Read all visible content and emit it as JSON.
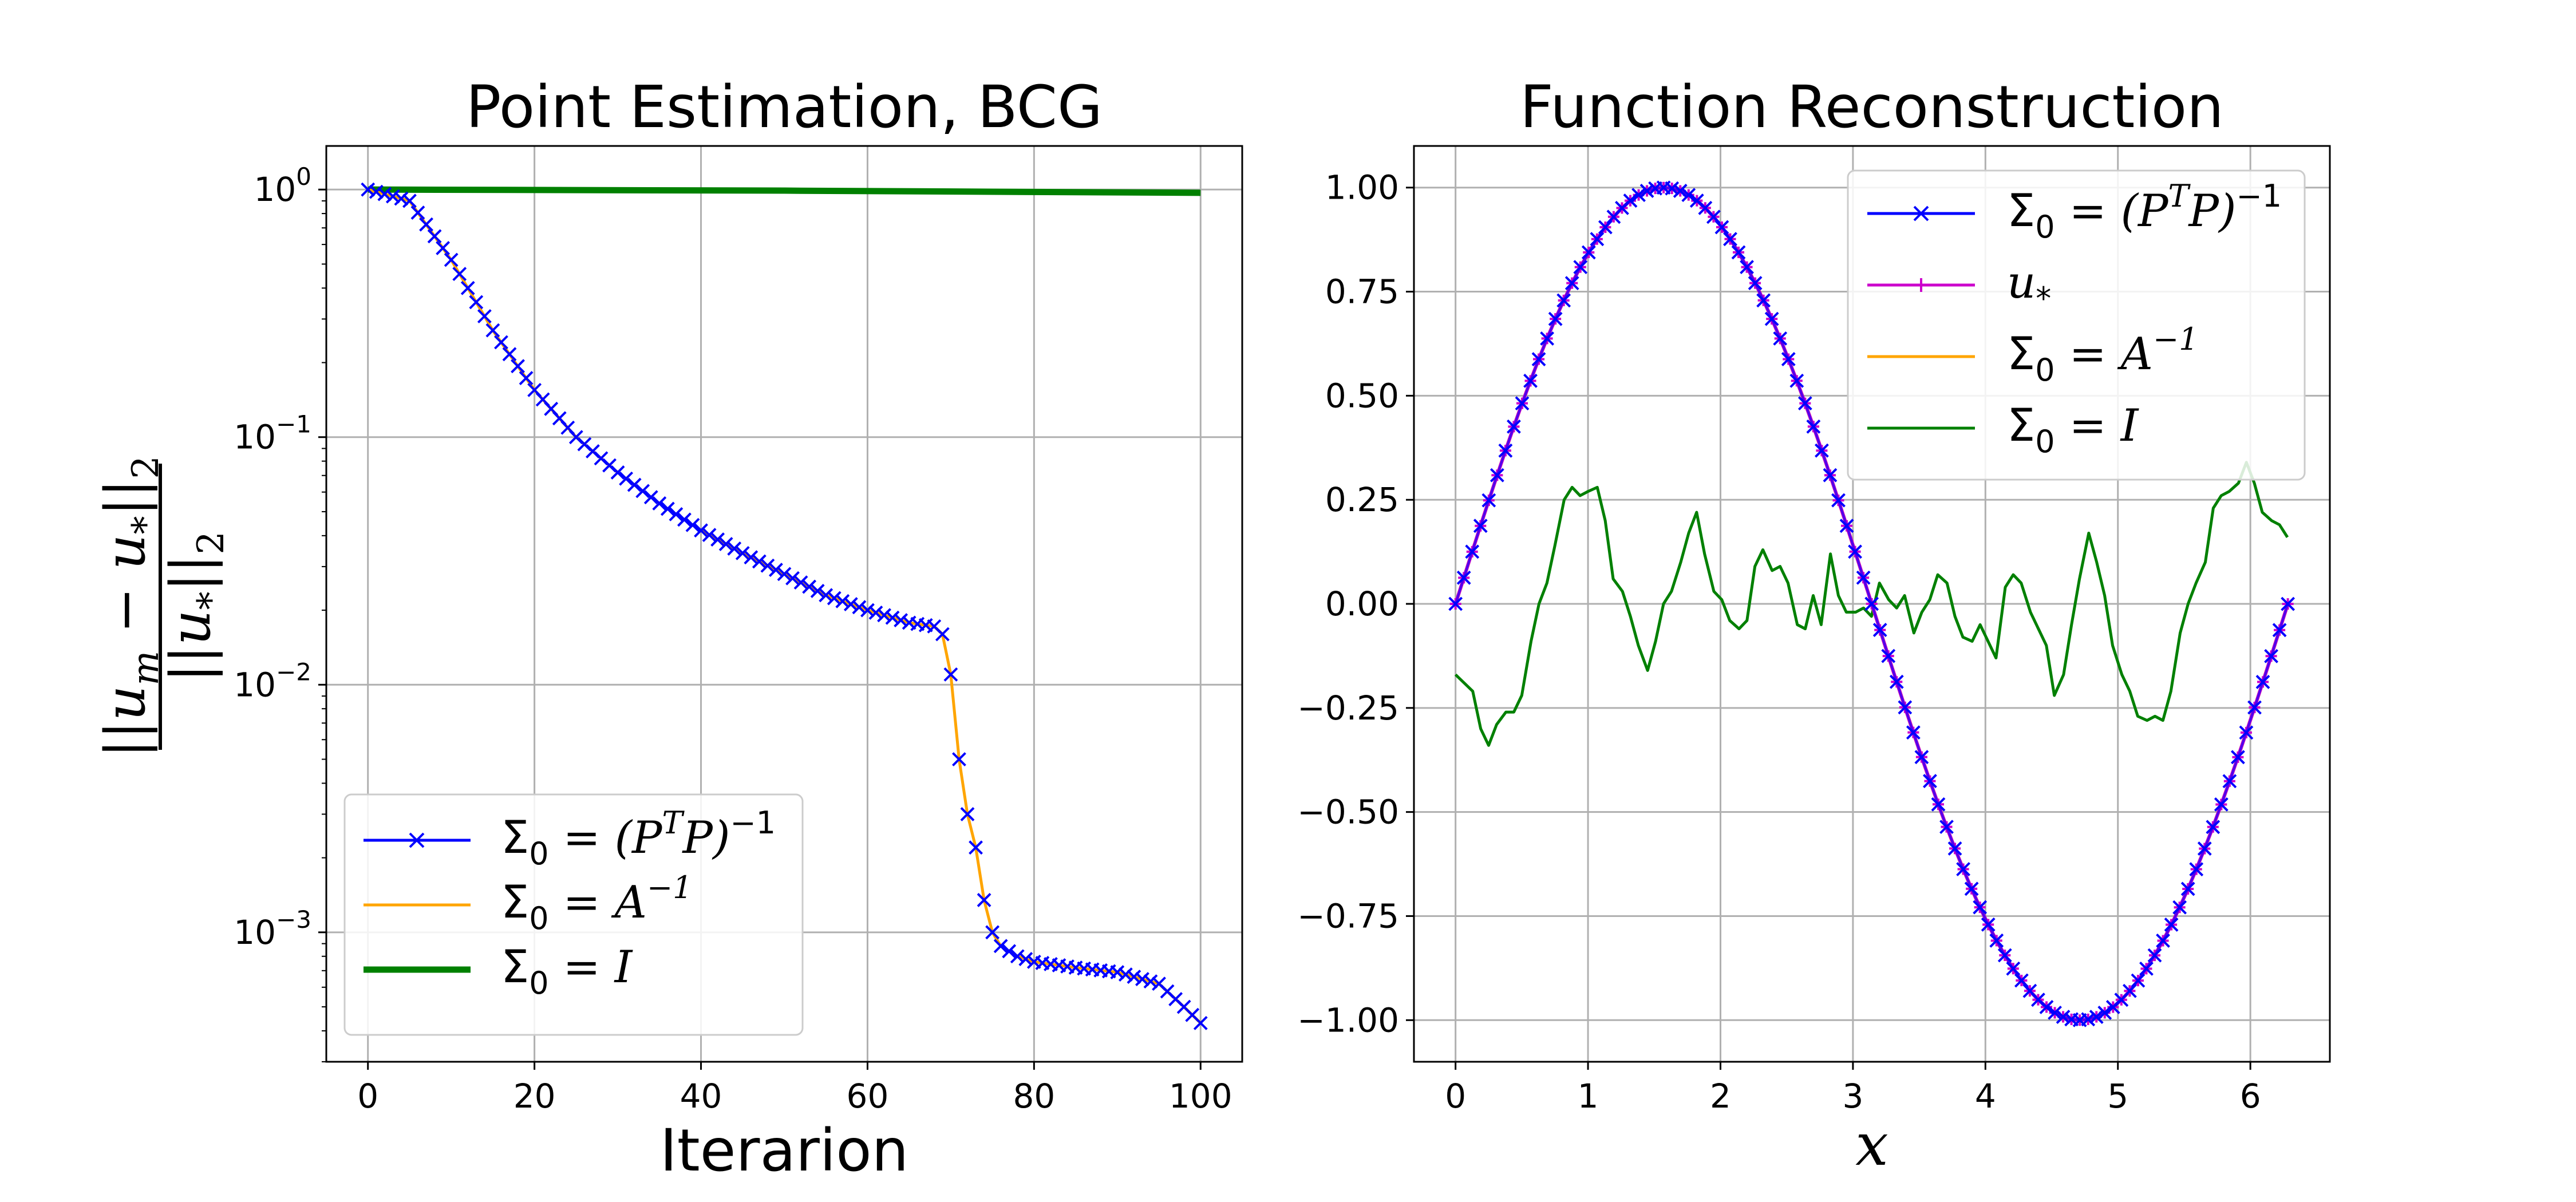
{
  "chart_data": [
    {
      "type": "line",
      "title": "Point Estimation, BCG",
      "xlabel": "Iterarion",
      "ylabel": "||u_m − u_*||_2 / ||u_*||_2",
      "yscale": "log",
      "xlim": [
        -5,
        105
      ],
      "ylim": [
        0.0003,
        1.5
      ],
      "xticks": [
        0,
        20,
        40,
        60,
        80,
        100
      ],
      "xtick_labels": [
        "0",
        "20",
        "40",
        "60",
        "80",
        "100"
      ],
      "yticks": [
        1,
        0.1,
        0.01,
        0.001
      ],
      "ytick_labels": [
        {
          "base": "10",
          "exp": "0"
        },
        {
          "base": "10",
          "exp": "−1"
        },
        {
          "base": "10",
          "exp": "−2"
        },
        {
          "base": "10",
          "exp": "−3"
        }
      ],
      "grid": true,
      "legend": "lower-left",
      "series": [
        {
          "name": "Σ0 = (PᵀP)⁻¹",
          "legend_main": "Σ",
          "legend_sub": "0",
          "legend_rest": " = (P",
          "legend_sup": "T",
          "legend_rest2": "P)",
          "legend_sup2": "−1",
          "color": "#0000ff",
          "marker": "x",
          "x": [
            0,
            5,
            10,
            15,
            20,
            25,
            30,
            35,
            40,
            45,
            50,
            55,
            60,
            65,
            68,
            69,
            70,
            71,
            72,
            73,
            74,
            75,
            76,
            78,
            80,
            85,
            90,
            95,
            98,
            100
          ],
          "y": [
            1.0,
            0.9,
            0.52,
            0.27,
            0.155,
            0.1,
            0.072,
            0.054,
            0.042,
            0.034,
            0.028,
            0.023,
            0.02,
            0.0178,
            0.0172,
            0.016,
            0.011,
            0.005,
            0.003,
            0.0022,
            0.00135,
            0.001,
            0.00088,
            0.0008,
            0.00076,
            0.00072,
            0.00069,
            0.00062,
            0.0005,
            0.00043
          ]
        },
        {
          "name": "Σ0 = A⁻¹",
          "legend_main": "Σ",
          "legend_sub": "0",
          "legend_rest": " = A",
          "legend_sup": "−1",
          "color": "#ffa500",
          "marker": "none",
          "x": [
            0,
            5,
            10,
            15,
            20,
            25,
            30,
            35,
            40,
            45,
            50,
            55,
            60,
            65,
            68,
            69,
            70,
            71,
            72,
            73,
            74,
            75,
            76,
            78,
            80,
            85,
            90,
            95,
            98,
            100
          ],
          "y": [
            1.0,
            0.9,
            0.52,
            0.27,
            0.155,
            0.1,
            0.072,
            0.054,
            0.042,
            0.034,
            0.028,
            0.023,
            0.02,
            0.0178,
            0.0172,
            0.016,
            0.011,
            0.005,
            0.003,
            0.0022,
            0.00135,
            0.001,
            0.00088,
            0.0008,
            0.00076,
            0.00072,
            0.00069,
            0.00062,
            0.0005,
            0.00043
          ]
        },
        {
          "name": "Σ0 = I",
          "legend_main": "Σ",
          "legend_sub": "0",
          "legend_rest": " = I",
          "color": "#008000",
          "marker": "none",
          "x": [
            0,
            50,
            100
          ],
          "y": [
            1.0,
            0.99,
            0.97
          ]
        }
      ]
    },
    {
      "type": "line",
      "title": "Function Reconstruction",
      "xlabel": "x",
      "ylabel": "",
      "xlim": [
        -0.314,
        6.6
      ],
      "ylim": [
        -1.1,
        1.1
      ],
      "xticks": [
        0,
        1,
        2,
        3,
        4,
        5,
        6
      ],
      "xtick_labels": [
        "0",
        "1",
        "2",
        "3",
        "4",
        "5",
        "6"
      ],
      "yticks": [
        1.0,
        0.75,
        0.5,
        0.25,
        0.0,
        -0.25,
        -0.5,
        -0.75,
        -1.0
      ],
      "ytick_labels": [
        "1.00",
        "0.75",
        "0.50",
        "0.25",
        "0.00",
        "−0.25",
        "−0.50",
        "−0.75",
        "−1.00"
      ],
      "grid": true,
      "legend": "top-right",
      "series": [
        {
          "name": "Σ0 = (PᵀP)⁻¹",
          "legend_main": "Σ",
          "legend_sub": "0",
          "legend_rest": " = (P",
          "legend_sup": "T",
          "legend_rest2": "P)",
          "legend_sup2": "−1",
          "color": "#0000ff",
          "marker": "x",
          "function": "sin",
          "x_range": [
            0,
            6.283
          ],
          "n_points": 101
        },
        {
          "name": "u*",
          "legend_main": "u",
          "legend_sub": "*",
          "color": "#cc00cc",
          "marker": "+",
          "function": "sin",
          "x_range": [
            0,
            6.283
          ],
          "n_points": 101
        },
        {
          "name": "Σ0 = A⁻¹",
          "legend_main": "Σ",
          "legend_sub": "0",
          "legend_rest": " = A",
          "legend_sup": "−1",
          "color": "#ffa500",
          "marker": "none",
          "function": "sin",
          "x_range": [
            0,
            6.283
          ],
          "n_points": 101
        },
        {
          "name": "Σ0 = I",
          "legend_main": "Σ",
          "legend_sub": "0",
          "legend_rest": " = I",
          "color": "#008000",
          "marker": "none",
          "x": [
            0.0,
            0.13,
            0.19,
            0.25,
            0.31,
            0.38,
            0.44,
            0.5,
            0.57,
            0.63,
            0.69,
            0.75,
            0.82,
            0.88,
            0.94,
            1.0,
            1.07,
            1.13,
            1.19,
            1.26,
            1.32,
            1.38,
            1.45,
            1.51,
            1.57,
            1.63,
            1.7,
            1.76,
            1.82,
            1.88,
            1.95,
            2.01,
            2.07,
            2.14,
            2.2,
            2.26,
            2.32,
            2.39,
            2.45,
            2.51,
            2.58,
            2.64,
            2.7,
            2.76,
            2.83,
            2.89,
            2.95,
            3.02,
            3.08,
            3.14,
            3.2,
            3.27,
            3.33,
            3.39,
            3.46,
            3.52,
            3.58,
            3.64,
            3.71,
            3.77,
            3.83,
            3.9,
            3.96,
            4.02,
            4.08,
            4.15,
            4.21,
            4.27,
            4.34,
            4.4,
            4.46,
            4.52,
            4.59,
            4.65,
            4.71,
            4.78,
            4.84,
            4.9,
            4.96,
            5.03,
            5.09,
            5.15,
            5.22,
            5.28,
            5.34,
            5.4,
            5.47,
            5.53,
            5.59,
            5.66,
            5.72,
            5.78,
            5.84,
            5.91,
            5.97,
            6.03,
            6.09,
            6.16,
            6.22,
            6.28
          ],
          "y": [
            -0.17,
            -0.21,
            -0.3,
            -0.34,
            -0.29,
            -0.26,
            -0.26,
            -0.22,
            -0.09,
            0.0,
            0.05,
            0.14,
            0.25,
            0.28,
            0.26,
            0.27,
            0.28,
            0.2,
            0.06,
            0.03,
            -0.03,
            -0.1,
            -0.16,
            -0.09,
            -0.0,
            0.03,
            0.1,
            0.17,
            0.22,
            0.12,
            0.03,
            0.01,
            -0.04,
            -0.06,
            -0.04,
            0.09,
            0.13,
            0.08,
            0.09,
            0.05,
            -0.05,
            -0.06,
            0.02,
            -0.05,
            0.12,
            0.02,
            -0.02,
            -0.02,
            -0.01,
            -0.03,
            0.05,
            0.01,
            -0.01,
            0.02,
            -0.07,
            -0.02,
            0.01,
            0.07,
            0.05,
            -0.03,
            -0.08,
            -0.09,
            -0.05,
            -0.09,
            -0.13,
            0.04,
            0.07,
            0.05,
            -0.02,
            -0.06,
            -0.1,
            -0.22,
            -0.17,
            -0.05,
            0.06,
            0.17,
            0.1,
            0.02,
            -0.1,
            -0.17,
            -0.21,
            -0.27,
            -0.28,
            -0.27,
            -0.28,
            -0.21,
            -0.07,
            0.0,
            0.05,
            0.1,
            0.23,
            0.26,
            0.27,
            0.29,
            0.34,
            0.29,
            0.22,
            0.2,
            0.19,
            0.16
          ]
        }
      ]
    }
  ]
}
